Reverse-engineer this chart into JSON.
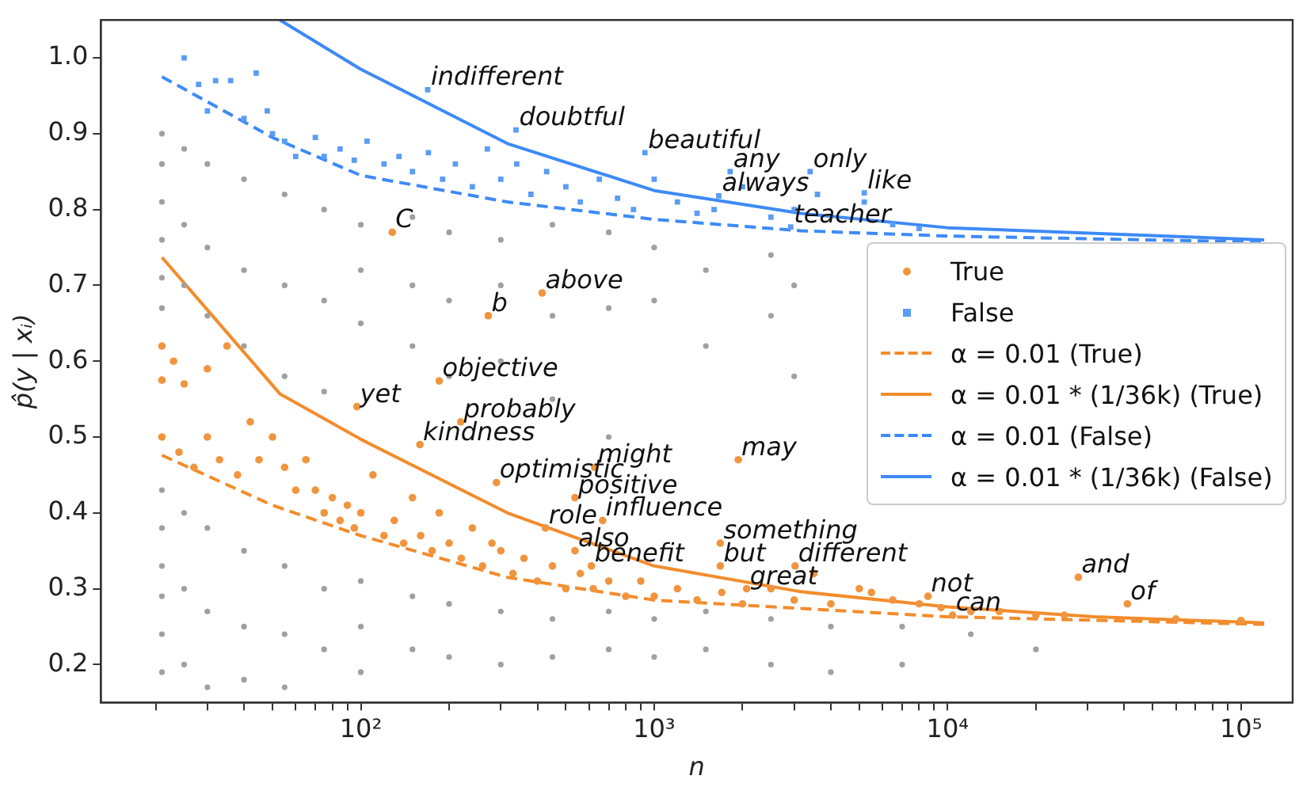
{
  "chart_data": {
    "type": "scatter",
    "xlabel": "n",
    "ylabel": "p̂(y | xᵢ)",
    "log": "x",
    "grid": false,
    "legend": "right",
    "xlim": [
      13,
      150000
    ],
    "ylim": [
      0.15,
      1.05
    ],
    "xticks": [
      {
        "value": 20,
        "label": null
      },
      {
        "value": 30,
        "label": null
      },
      {
        "value": 40,
        "label": null
      },
      {
        "value": 50,
        "label": null
      },
      {
        "value": 60,
        "label": null
      },
      {
        "value": 70,
        "label": null
      },
      {
        "value": 80,
        "label": null
      },
      {
        "value": 90,
        "label": null
      },
      {
        "value": 100,
        "label": "10²"
      },
      {
        "value": 200,
        "label": null
      },
      {
        "value": 300,
        "label": null
      },
      {
        "value": 400,
        "label": null
      },
      {
        "value": 500,
        "label": null
      },
      {
        "value": 600,
        "label": null
      },
      {
        "value": 700,
        "label": null
      },
      {
        "value": 800,
        "label": null
      },
      {
        "value": 900,
        "label": null
      },
      {
        "value": 1000,
        "label": "10³"
      },
      {
        "value": 2000,
        "label": null
      },
      {
        "value": 3000,
        "label": null
      },
      {
        "value": 4000,
        "label": null
      },
      {
        "value": 5000,
        "label": null
      },
      {
        "value": 6000,
        "label": null
      },
      {
        "value": 7000,
        "label": null
      },
      {
        "value": 8000,
        "label": null
      },
      {
        "value": 9000,
        "label": null
      },
      {
        "value": 10000,
        "label": "10⁴"
      },
      {
        "value": 20000,
        "label": null
      },
      {
        "value": 30000,
        "label": null
      },
      {
        "value": 40000,
        "label": null
      },
      {
        "value": 50000,
        "label": null
      },
      {
        "value": 60000,
        "label": null
      },
      {
        "value": 70000,
        "label": null
      },
      {
        "value": 80000,
        "label": null
      },
      {
        "value": 90000,
        "label": null
      },
      {
        "value": 100000,
        "label": "10⁵"
      }
    ],
    "yticks": [
      0.2,
      0.3,
      0.4,
      0.5,
      0.6,
      0.7,
      0.8,
      0.9,
      {
        "value": 1,
        "label": "1.0"
      }
    ],
    "series": [
      {
        "type": "scatter",
        "marker": "circle",
        "color": "#a0a0a0",
        "x": [
          21,
          21,
          21,
          21,
          21,
          21,
          21,
          21,
          21,
          21,
          21,
          21,
          25,
          25,
          25,
          25,
          25,
          25,
          30,
          30,
          30,
          30,
          30,
          30,
          40,
          40,
          40,
          40,
          40,
          40,
          55,
          55,
          55,
          55,
          55,
          55,
          75,
          75,
          75,
          75,
          75,
          100,
          100,
          100,
          100,
          100,
          100,
          150,
          150,
          150,
          150,
          150,
          200,
          200,
          200,
          200,
          200,
          300,
          300,
          300,
          300,
          300,
          450,
          450,
          450,
          450,
          450,
          700,
          700,
          700,
          700,
          700,
          1000,
          1000,
          1000,
          1000,
          1500,
          1500,
          1500,
          1500,
          2500,
          2500,
          2500,
          2500,
          3000,
          3000,
          4000,
          4000,
          7000,
          7000,
          12000,
          20000
        ],
        "values": [
          0.9,
          0.86,
          0.81,
          0.76,
          0.71,
          0.67,
          0.43,
          0.38,
          0.33,
          0.29,
          0.24,
          0.19,
          0.88,
          0.78,
          0.7,
          0.4,
          0.3,
          0.2,
          0.86,
          0.75,
          0.66,
          0.38,
          0.27,
          0.17,
          0.84,
          0.72,
          0.62,
          0.35,
          0.25,
          0.18,
          0.82,
          0.7,
          0.58,
          0.33,
          0.24,
          0.17,
          0.8,
          0.68,
          0.56,
          0.3,
          0.22,
          0.78,
          0.72,
          0.65,
          0.31,
          0.25,
          0.19,
          0.79,
          0.7,
          0.62,
          0.29,
          0.22,
          0.77,
          0.68,
          0.58,
          0.28,
          0.21,
          0.76,
          0.7,
          0.6,
          0.27,
          0.2,
          0.78,
          0.66,
          0.55,
          0.26,
          0.21,
          0.77,
          0.67,
          0.5,
          0.27,
          0.22,
          0.75,
          0.68,
          0.26,
          0.21,
          0.72,
          0.62,
          0.27,
          0.22,
          0.74,
          0.66,
          0.26,
          0.2,
          0.7,
          0.58,
          0.25,
          0.19,
          0.25,
          0.2,
          0.24,
          0.22
        ]
      },
      {
        "type": "scatter",
        "marker": "circle",
        "name": "True",
        "color": "#f0953e",
        "x": [
          21,
          23,
          21,
          25,
          30,
          35,
          21,
          24,
          27,
          30,
          33,
          38,
          42,
          45,
          50,
          55,
          60,
          65,
          70,
          75,
          80,
          85,
          90,
          95,
          100,
          110,
          120,
          130,
          140,
          150,
          160,
          175,
          185,
          200,
          220,
          240,
          260,
          280,
          300,
          330,
          360,
          400,
          450,
          500,
          560,
          620,
          700,
          800,
          900,
          1000,
          1200,
          1400,
          1700,
          2000,
          2500,
          3000,
          3500,
          4000,
          5000,
          5500,
          6500,
          8000,
          9500,
          12000,
          15000,
          20000,
          25000,
          60000,
          100000,
          128,
          415,
          272,
          185,
          97,
          219,
          159,
          627,
          1935,
          290,
          537,
          667,
          426,
          1680,
          537,
          611,
          1680,
          3020,
          2066,
          8570,
          27900,
          10400,
          41000
        ],
        "values": [
          0.62,
          0.6,
          0.575,
          0.57,
          0.59,
          0.62,
          0.5,
          0.48,
          0.46,
          0.5,
          0.47,
          0.45,
          0.52,
          0.47,
          0.5,
          0.46,
          0.43,
          0.47,
          0.43,
          0.4,
          0.42,
          0.39,
          0.41,
          0.38,
          0.4,
          0.45,
          0.37,
          0.39,
          0.36,
          0.42,
          0.37,
          0.35,
          0.4,
          0.36,
          0.34,
          0.38,
          0.33,
          0.36,
          0.35,
          0.32,
          0.34,
          0.31,
          0.33,
          0.3,
          0.32,
          0.3,
          0.31,
          0.29,
          0.31,
          0.29,
          0.3,
          0.285,
          0.295,
          0.28,
          0.3,
          0.285,
          0.32,
          0.28,
          0.3,
          0.295,
          0.285,
          0.28,
          0.275,
          0.27,
          0.27,
          0.265,
          0.265,
          0.26,
          0.258,
          0.77,
          0.69,
          0.66,
          0.574,
          0.54,
          0.52,
          0.49,
          0.46,
          0.47,
          0.44,
          0.42,
          0.39,
          0.38,
          0.36,
          0.35,
          0.33,
          0.33,
          0.33,
          0.3,
          0.29,
          0.315,
          0.265,
          0.28
        ]
      },
      {
        "type": "scatter",
        "marker": "square",
        "name": "False",
        "color": "#5b9cf5",
        "x": [
          25,
          28,
          32,
          36,
          44,
          30,
          40,
          48,
          50,
          55,
          60,
          70,
          75,
          85,
          95,
          105,
          120,
          135,
          150,
          170,
          190,
          210,
          240,
          270,
          300,
          340,
          380,
          430,
          500,
          560,
          650,
          750,
          850,
          1000,
          1200,
          1400,
          1600,
          2000,
          2500,
          3000,
          3600,
          4500,
          5200,
          6500,
          8000,
          169,
          338,
          930,
          1815,
          1660,
          3400,
          5200,
          2920
        ],
        "values": [
          1,
          0.965,
          0.97,
          0.97,
          0.98,
          0.93,
          0.92,
          0.93,
          0.9,
          0.89,
          0.87,
          0.895,
          0.87,
          0.88,
          0.865,
          0.89,
          0.86,
          0.87,
          0.85,
          0.875,
          0.84,
          0.86,
          0.83,
          0.88,
          0.84,
          0.86,
          0.82,
          0.85,
          0.83,
          0.81,
          0.84,
          0.815,
          0.8,
          0.84,
          0.81,
          0.795,
          0.8,
          0.83,
          0.79,
          0.8,
          0.82,
          null,
          0.81,
          0.78,
          0.775,
          0.958,
          0.905,
          0.875,
          0.85,
          0.818,
          0.85,
          0.822,
          0.777
        ]
      },
      {
        "type": "line",
        "line_style": "dashed",
        "name": "α = 0.01 (True)",
        "color": "#f28c2c",
        "x": [
          21,
          50,
          100,
          316,
          1000,
          10000,
          120000
        ],
        "values": [
          0.476,
          0.41,
          0.37,
          0.315,
          0.285,
          0.263,
          0.253
        ]
      },
      {
        "type": "line",
        "line_style": "solid",
        "name": "α = 0.01 * (1/36k) (True)",
        "color": "#f28c2c",
        "x": [
          21,
          53,
          100,
          316,
          1000,
          3162,
          10000,
          31623,
          120000
        ],
        "values": [
          0.737,
          0.557,
          0.497,
          0.4,
          0.33,
          0.296,
          0.276,
          0.263,
          0.255
        ]
      },
      {
        "type": "line",
        "line_style": "dashed",
        "name": "α = 0.01 (False)",
        "color": "#3d8af7",
        "x": [
          21,
          50,
          100,
          316,
          1000,
          3162,
          10000,
          120000
        ],
        "values": [
          0.975,
          0.895,
          0.845,
          0.81,
          0.787,
          0.772,
          0.765,
          0.757
        ]
      },
      {
        "type": "line",
        "line_style": "solid",
        "name": "α = 0.01 * (1/36k) (False)",
        "color": "#3d8af7",
        "x": [
          53,
          100,
          316,
          1000,
          3162,
          10000,
          120000
        ],
        "values": [
          1.05,
          0.985,
          0.887,
          0.825,
          0.795,
          0.776,
          0.76
        ]
      }
    ],
    "annotations": [
      {
        "text": "indifferent",
        "x": 169,
        "y": 0.958
      },
      {
        "text": "doubtful",
        "x": 338,
        "y": 0.905
      },
      {
        "text": "beautiful",
        "x": 930,
        "y": 0.875
      },
      {
        "text": "any",
        "x": 1815,
        "y": 0.85
      },
      {
        "text": "always",
        "x": 1660,
        "y": 0.818
      },
      {
        "text": "only",
        "x": 3400,
        "y": 0.85
      },
      {
        "text": "like",
        "x": 5200,
        "y": 0.822
      },
      {
        "text": "teacher",
        "x": 2920,
        "y": 0.777
      },
      {
        "text": "C",
        "x": 128,
        "y": 0.77
      },
      {
        "text": "above",
        "x": 415,
        "y": 0.69
      },
      {
        "text": "b",
        "x": 272,
        "y": 0.66
      },
      {
        "text": "objective",
        "x": 185,
        "y": 0.574
      },
      {
        "text": "yet",
        "x": 97,
        "y": 0.54
      },
      {
        "text": "probably",
        "x": 219,
        "y": 0.52
      },
      {
        "text": "kindness",
        "x": 159,
        "y": 0.49
      },
      {
        "text": "might",
        "x": 627,
        "y": 0.46
      },
      {
        "text": "may",
        "x": 1935,
        "y": 0.47
      },
      {
        "text": "optimistic",
        "x": 290,
        "y": 0.44
      },
      {
        "text": "positive",
        "x": 537,
        "y": 0.42
      },
      {
        "text": "influence",
        "x": 667,
        "y": 0.39
      },
      {
        "text": "role",
        "x": 426,
        "y": 0.38
      },
      {
        "text": "something",
        "x": 1680,
        "y": 0.36
      },
      {
        "text": "also",
        "x": 537,
        "y": 0.35
      },
      {
        "text": "benefit",
        "x": 611,
        "y": 0.33
      },
      {
        "text": "but",
        "x": 1680,
        "y": 0.33
      },
      {
        "text": "different",
        "x": 3020,
        "y": 0.33
      },
      {
        "text": "great",
        "x": 2066,
        "y": 0.3
      },
      {
        "text": "not",
        "x": 8570,
        "y": 0.29
      },
      {
        "text": "and",
        "x": 27900,
        "y": 0.315
      },
      {
        "text": "can",
        "x": 10400,
        "y": 0.265
      },
      {
        "text": "of",
        "x": 41000,
        "y": 0.28
      }
    ]
  }
}
